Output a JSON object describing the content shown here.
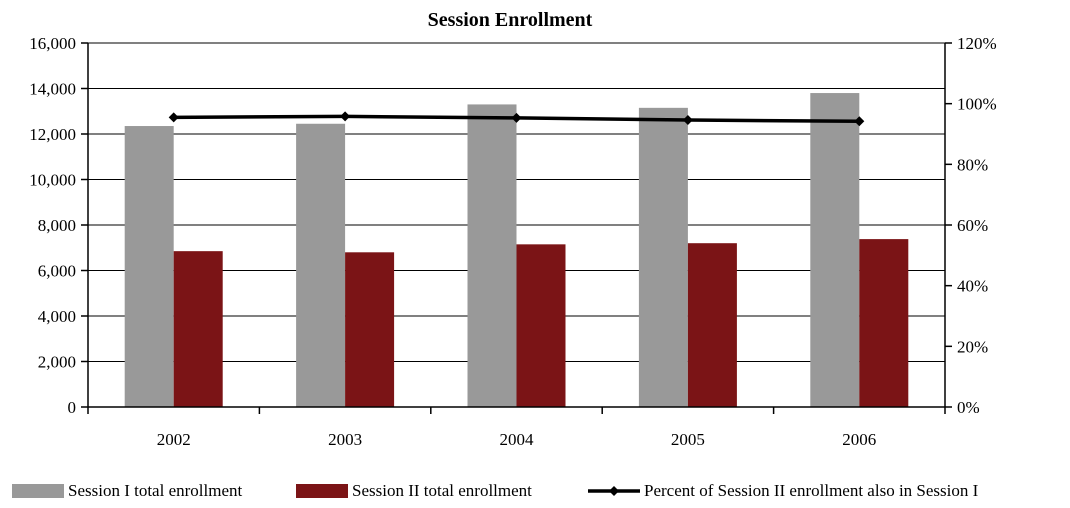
{
  "chart_data": {
    "type": "bar",
    "title": "Session Enrollment",
    "categories": [
      "2002",
      "2003",
      "2004",
      "2005",
      "2006"
    ],
    "series": [
      {
        "name": "Session I total enrollment",
        "kind": "bar",
        "axis": "left",
        "color": "#999999",
        "values": [
          12350,
          12450,
          13300,
          13150,
          13800
        ]
      },
      {
        "name": "Session II total enrollment",
        "kind": "bar",
        "axis": "left",
        "color": "#7b1416",
        "values": [
          6850,
          6800,
          7150,
          7200,
          7380
        ]
      },
      {
        "name": "Percent of Session II enrollment also in Session I",
        "kind": "line",
        "axis": "right",
        "color": "#000000",
        "marker": "diamond",
        "values": [
          0.955,
          0.958,
          0.953,
          0.946,
          0.942
        ]
      }
    ],
    "y_left": {
      "ylim": [
        0,
        16000
      ],
      "ticks": [
        0,
        2000,
        4000,
        6000,
        8000,
        10000,
        12000,
        14000,
        16000
      ],
      "tick_labels": [
        "0",
        "2,000",
        "4,000",
        "6,000",
        "8,000",
        "10,000",
        "12,000",
        "14,000",
        "16,000"
      ]
    },
    "y_right": {
      "ylim": [
        0,
        1.2
      ],
      "ticks": [
        0,
        0.2,
        0.4,
        0.6,
        0.8,
        1.0,
        1.2
      ],
      "tick_labels": [
        "0%",
        "20%",
        "40%",
        "60%",
        "80%",
        "100%",
        "120%"
      ]
    },
    "grid": true,
    "legend_position": "bottom"
  }
}
